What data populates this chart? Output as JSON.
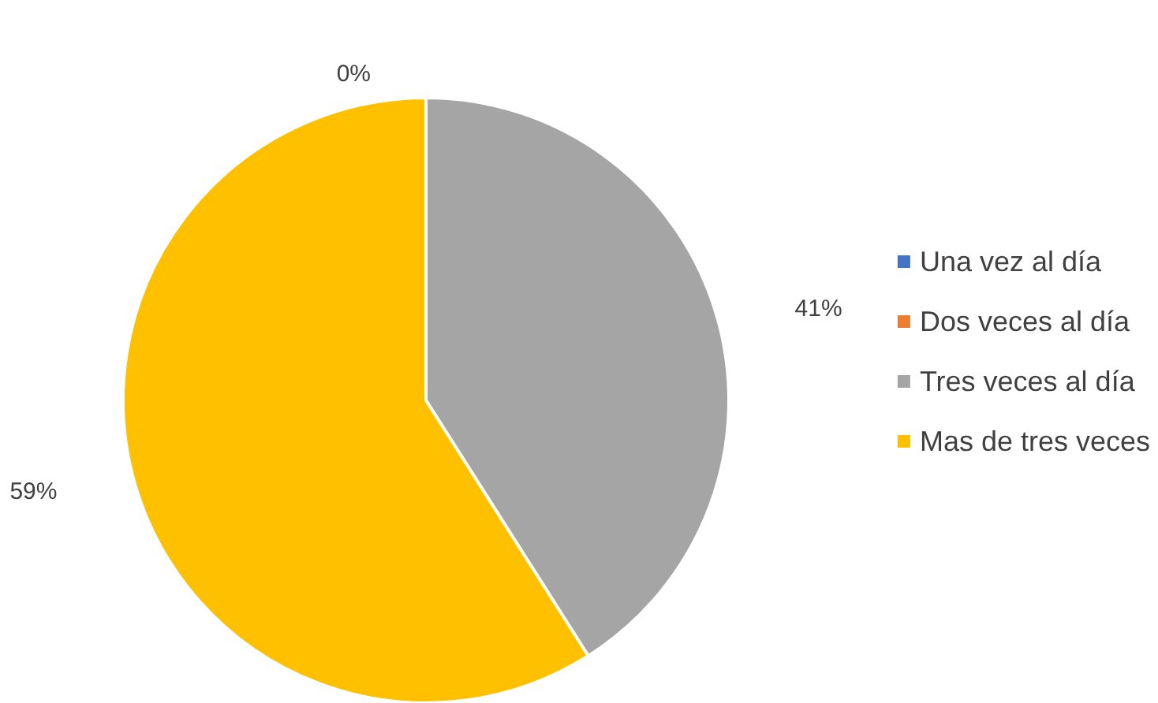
{
  "chart_data": {
    "type": "pie",
    "categories": [
      "Una vez al día",
      "Dos veces al día",
      "Tres veces al día",
      "Mas de tres veces"
    ],
    "values": [
      0,
      0,
      41,
      59
    ],
    "colors": [
      "#4472c4",
      "#ed7d31",
      "#a5a5a5",
      "#ffc000"
    ],
    "value_labels": [
      null,
      "0%",
      "41%",
      "59%"
    ],
    "legend": "right"
  }
}
